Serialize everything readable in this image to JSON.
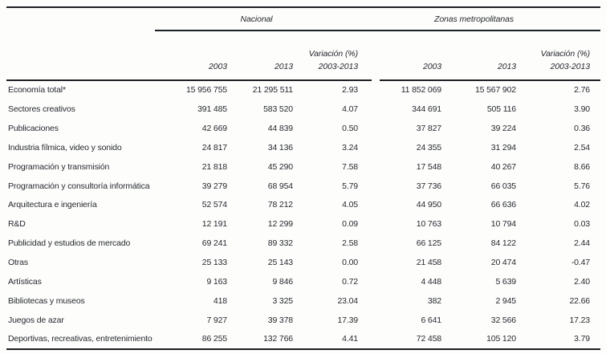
{
  "table": {
    "header": {
      "group_nacional": "Nacional",
      "group_zm": "Zonas metropolitanas",
      "col_2003": "2003",
      "col_2013": "2013",
      "variacion_line1": "Variación (%)",
      "variacion_line2": "2003-2013"
    },
    "rows": [
      {
        "label": "Economía total*",
        "nac_2003": "15 956 755",
        "nac_2013": "21 295 511",
        "nac_var": "2.93",
        "zm_2003": "11 852 069",
        "zm_2013": "15 567 902",
        "zm_var": "2.76"
      },
      {
        "label": "Sectores creativos",
        "nac_2003": "391 485",
        "nac_2013": "583 520",
        "nac_var": "4.07",
        "zm_2003": "344 691",
        "zm_2013": "505 116",
        "zm_var": "3.90"
      },
      {
        "label": "Publicaciones",
        "nac_2003": "42 669",
        "nac_2013": "44 839",
        "nac_var": "0.50",
        "zm_2003": "37 827",
        "zm_2013": "39 224",
        "zm_var": "0.36"
      },
      {
        "label": "Industria fílmica, video y sonido",
        "nac_2003": "24 817",
        "nac_2013": "34 136",
        "nac_var": "3.24",
        "zm_2003": "24 355",
        "zm_2013": "31 294",
        "zm_var": "2.54"
      },
      {
        "label": "Programación y transmisión",
        "nac_2003": "21 818",
        "nac_2013": "45 290",
        "nac_var": "7.58",
        "zm_2003": "17 548",
        "zm_2013": "40 267",
        "zm_var": "8.66"
      },
      {
        "label": "Programación y consultoría informática",
        "nac_2003": "39 279",
        "nac_2013": "68 954",
        "nac_var": "5.79",
        "zm_2003": "37 736",
        "zm_2013": "66 035",
        "zm_var": "5.76"
      },
      {
        "label": "Arquitectura e ingeniería",
        "nac_2003": "52 574",
        "nac_2013": "78 212",
        "nac_var": "4.05",
        "zm_2003": "44 950",
        "zm_2013": "66 636",
        "zm_var": "4.02"
      },
      {
        "label": "R&D",
        "nac_2003": "12 191",
        "nac_2013": "12 299",
        "nac_var": "0.09",
        "zm_2003": "10 763",
        "zm_2013": "10 794",
        "zm_var": "0.03"
      },
      {
        "label": "Publicidad y estudios de mercado",
        "nac_2003": "69 241",
        "nac_2013": "89 332",
        "nac_var": "2.58",
        "zm_2003": "66 125",
        "zm_2013": "84 122",
        "zm_var": "2.44"
      },
      {
        "label": "Otras",
        "nac_2003": "25 133",
        "nac_2013": "25 143",
        "nac_var": "0.00",
        "zm_2003": "21 458",
        "zm_2013": "20 474",
        "zm_var": "-0.47"
      },
      {
        "label": "Artísticas",
        "nac_2003": "9 163",
        "nac_2013": "9 846",
        "nac_var": "0.72",
        "zm_2003": "4 448",
        "zm_2013": "5 639",
        "zm_var": "2.40"
      },
      {
        "label": "Bibliotecas y museos",
        "nac_2003": "418",
        "nac_2013": "3 325",
        "nac_var": "23.04",
        "zm_2003": "382",
        "zm_2013": "2 945",
        "zm_var": "22.66"
      },
      {
        "label": "Juegos de azar",
        "nac_2003": "7 927",
        "nac_2013": "39 378",
        "nac_var": "17.39",
        "zm_2003": "6 641",
        "zm_2013": "32 566",
        "zm_var": "17.23"
      },
      {
        "label": "Deportivas, recreativas, entretenimiento",
        "nac_2003": "86 255",
        "nac_2013": "132 766",
        "nac_var": "4.41",
        "zm_2003": "72 458",
        "zm_2013": "105 120",
        "zm_var": "3.79"
      }
    ]
  }
}
